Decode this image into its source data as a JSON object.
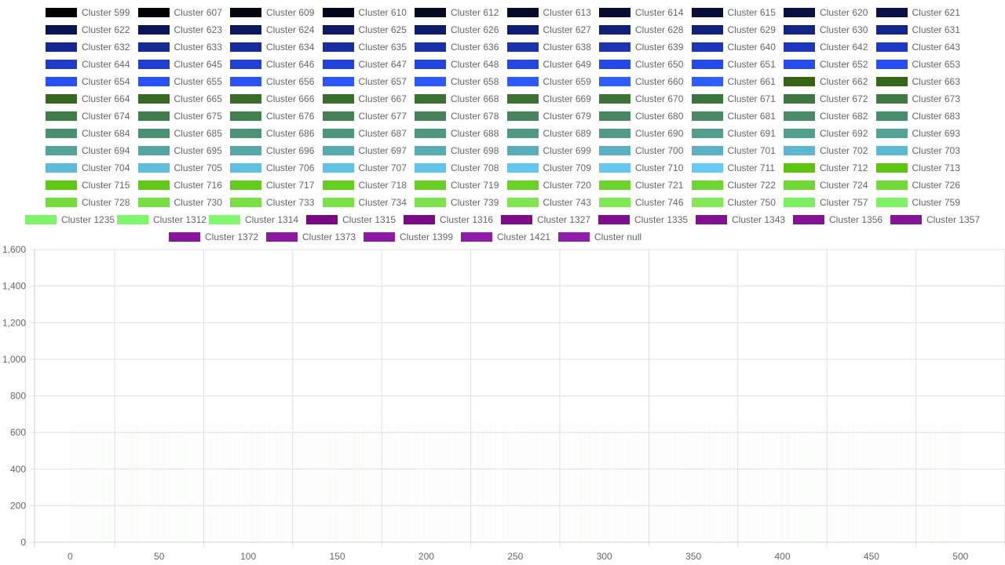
{
  "chart_data": {
    "type": "bar",
    "title": "",
    "xlabel": "",
    "ylabel": "",
    "x_range": [
      -20,
      525
    ],
    "x_ticks": [
      0,
      50,
      100,
      150,
      200,
      250,
      300,
      350,
      400,
      450,
      500
    ],
    "x_tick_labels": [
      "0",
      "50",
      "100",
      "150",
      "200",
      "250",
      "300",
      "350",
      "400",
      "450",
      "500"
    ],
    "ylim": [
      0,
      1600
    ],
    "y_ticks": [
      0,
      200,
      400,
      600,
      800,
      1000,
      1200,
      1400,
      1600
    ],
    "y_tick_labels": [
      "0",
      "200",
      "400",
      "600",
      "800",
      "1,000",
      "1,200",
      "1,400",
      "1,600"
    ],
    "grid": true,
    "legend_position": "top",
    "bar_x_range": [
      0,
      500
    ],
    "bar_value_approx": 650,
    "series": [
      {
        "name": "Cluster 599",
        "color": "#000000"
      },
      {
        "name": "Cluster 607",
        "color": "#010208"
      },
      {
        "name": "Cluster 609",
        "color": "#020410"
      },
      {
        "name": "Cluster 610",
        "color": "#030618"
      },
      {
        "name": "Cluster 612",
        "color": "#040820"
      },
      {
        "name": "Cluster 613",
        "color": "#050a28"
      },
      {
        "name": "Cluster 614",
        "color": "#060c30"
      },
      {
        "name": "Cluster 615",
        "color": "#070e38"
      },
      {
        "name": "Cluster 620",
        "color": "#081040"
      },
      {
        "name": "Cluster 621",
        "color": "#091248"
      },
      {
        "name": "Cluster 622",
        "color": "#0a1450"
      },
      {
        "name": "Cluster 623",
        "color": "#0b1658"
      },
      {
        "name": "Cluster 624",
        "color": "#0c1860"
      },
      {
        "name": "Cluster 625",
        "color": "#0d1a66"
      },
      {
        "name": "Cluster 626",
        "color": "#0e1c6c"
      },
      {
        "name": "Cluster 627",
        "color": "#0f1e72"
      },
      {
        "name": "Cluster 628",
        "color": "#102078"
      },
      {
        "name": "Cluster 629",
        "color": "#11227e"
      },
      {
        "name": "Cluster 630",
        "color": "#122484"
      },
      {
        "name": "Cluster 631",
        "color": "#13268a"
      },
      {
        "name": "Cluster 632",
        "color": "#142890"
      },
      {
        "name": "Cluster 633",
        "color": "#152a96"
      },
      {
        "name": "Cluster 634",
        "color": "#162c9c"
      },
      {
        "name": "Cluster 635",
        "color": "#172ea2"
      },
      {
        "name": "Cluster 636",
        "color": "#1830a8"
      },
      {
        "name": "Cluster 638",
        "color": "#1932ae"
      },
      {
        "name": "Cluster 639",
        "color": "#1a34b4"
      },
      {
        "name": "Cluster 640",
        "color": "#1b36ba"
      },
      {
        "name": "Cluster 642",
        "color": "#1c38c0"
      },
      {
        "name": "Cluster 643",
        "color": "#1d3ac6"
      },
      {
        "name": "Cluster 644",
        "color": "#1e3ccc"
      },
      {
        "name": "Cluster 645",
        "color": "#1f3ed2"
      },
      {
        "name": "Cluster 646",
        "color": "#2040d8"
      },
      {
        "name": "Cluster 647",
        "color": "#2142dc"
      },
      {
        "name": "Cluster 648",
        "color": "#2244e0"
      },
      {
        "name": "Cluster 649",
        "color": "#2346e4"
      },
      {
        "name": "Cluster 650",
        "color": "#2448e8"
      },
      {
        "name": "Cluster 651",
        "color": "#254aec"
      },
      {
        "name": "Cluster 652",
        "color": "#264cf0"
      },
      {
        "name": "Cluster 653",
        "color": "#274ef2"
      },
      {
        "name": "Cluster 654",
        "color": "#2850f4"
      },
      {
        "name": "Cluster 655",
        "color": "#2952f6"
      },
      {
        "name": "Cluster 656",
        "color": "#2a54f8"
      },
      {
        "name": "Cluster 657",
        "color": "#2b56fa"
      },
      {
        "name": "Cluster 658",
        "color": "#2c58fc"
      },
      {
        "name": "Cluster 659",
        "color": "#2d5afd"
      },
      {
        "name": "Cluster 660",
        "color": "#2e5cfe"
      },
      {
        "name": "Cluster 661",
        "color": "#2f5eff"
      },
      {
        "name": "Cluster 662",
        "color": "#346414"
      },
      {
        "name": "Cluster 663",
        "color": "#35661a"
      },
      {
        "name": "Cluster 664",
        "color": "#366820"
      },
      {
        "name": "Cluster 665",
        "color": "#376a24"
      },
      {
        "name": "Cluster 666",
        "color": "#386c28"
      },
      {
        "name": "Cluster 667",
        "color": "#396e2c"
      },
      {
        "name": "Cluster 668",
        "color": "#3a7030"
      },
      {
        "name": "Cluster 669",
        "color": "#3b7234"
      },
      {
        "name": "Cluster 670",
        "color": "#3c7438"
      },
      {
        "name": "Cluster 671",
        "color": "#3d763c"
      },
      {
        "name": "Cluster 672",
        "color": "#3e7840"
      },
      {
        "name": "Cluster 673",
        "color": "#3f7a44"
      },
      {
        "name": "Cluster 674",
        "color": "#407c48"
      },
      {
        "name": "Cluster 675",
        "color": "#417e4c"
      },
      {
        "name": "Cluster 676",
        "color": "#428050"
      },
      {
        "name": "Cluster 677",
        "color": "#438254"
      },
      {
        "name": "Cluster 678",
        "color": "#448458"
      },
      {
        "name": "Cluster 679",
        "color": "#45865c"
      },
      {
        "name": "Cluster 680",
        "color": "#468860"
      },
      {
        "name": "Cluster 681",
        "color": "#478a64"
      },
      {
        "name": "Cluster 682",
        "color": "#488c68"
      },
      {
        "name": "Cluster 683",
        "color": "#498e6c"
      },
      {
        "name": "Cluster 684",
        "color": "#4a9070"
      },
      {
        "name": "Cluster 685",
        "color": "#4b9274"
      },
      {
        "name": "Cluster 686",
        "color": "#4c9478"
      },
      {
        "name": "Cluster 687",
        "color": "#4d967c"
      },
      {
        "name": "Cluster 688",
        "color": "#4e9880"
      },
      {
        "name": "Cluster 689",
        "color": "#4f9a84"
      },
      {
        "name": "Cluster 690",
        "color": "#509c88"
      },
      {
        "name": "Cluster 691",
        "color": "#519e8c"
      },
      {
        "name": "Cluster 692",
        "color": "#52a090"
      },
      {
        "name": "Cluster 693",
        "color": "#53a296"
      },
      {
        "name": "Cluster 694",
        "color": "#54a49c"
      },
      {
        "name": "Cluster 695",
        "color": "#55a6a2"
      },
      {
        "name": "Cluster 696",
        "color": "#56a8a8"
      },
      {
        "name": "Cluster 697",
        "color": "#57aaae"
      },
      {
        "name": "Cluster 698",
        "color": "#58acb4"
      },
      {
        "name": "Cluster 699",
        "color": "#59aeba"
      },
      {
        "name": "Cluster 700",
        "color": "#5ab0c0"
      },
      {
        "name": "Cluster 701",
        "color": "#5bb2c6"
      },
      {
        "name": "Cluster 702",
        "color": "#5cb8d0"
      },
      {
        "name": "Cluster 703",
        "color": "#5dbad4"
      },
      {
        "name": "Cluster 704",
        "color": "#5ebcd8"
      },
      {
        "name": "Cluster 705",
        "color": "#5fbedc"
      },
      {
        "name": "Cluster 706",
        "color": "#60c0e0"
      },
      {
        "name": "Cluster 707",
        "color": "#61c2e4"
      },
      {
        "name": "Cluster 708",
        "color": "#62c4e8"
      },
      {
        "name": "Cluster 709",
        "color": "#63c6ec"
      },
      {
        "name": "Cluster 710",
        "color": "#64c8f0"
      },
      {
        "name": "Cluster 711",
        "color": "#65caf4"
      },
      {
        "name": "Cluster 712",
        "color": "#5cc40a"
      },
      {
        "name": "Cluster 713",
        "color": "#5ec60e"
      },
      {
        "name": "Cluster 715",
        "color": "#60c812"
      },
      {
        "name": "Cluster 716",
        "color": "#62ca16"
      },
      {
        "name": "Cluster 717",
        "color": "#64cc1a"
      },
      {
        "name": "Cluster 718",
        "color": "#66ce1e"
      },
      {
        "name": "Cluster 719",
        "color": "#68d022"
      },
      {
        "name": "Cluster 720",
        "color": "#6ad226"
      },
      {
        "name": "Cluster 721",
        "color": "#6cd42a"
      },
      {
        "name": "Cluster 722",
        "color": "#6ed62e"
      },
      {
        "name": "Cluster 724",
        "color": "#70d832"
      },
      {
        "name": "Cluster 726",
        "color": "#72da36"
      },
      {
        "name": "Cluster 728",
        "color": "#74dc3a"
      },
      {
        "name": "Cluster 730",
        "color": "#76de3e"
      },
      {
        "name": "Cluster 733",
        "color": "#78e042"
      },
      {
        "name": "Cluster 734",
        "color": "#7ae246"
      },
      {
        "name": "Cluster 739",
        "color": "#7ce44a"
      },
      {
        "name": "Cluster 743",
        "color": "#7ee64e"
      },
      {
        "name": "Cluster 746",
        "color": "#80e852"
      },
      {
        "name": "Cluster 750",
        "color": "#82ea56"
      },
      {
        "name": "Cluster 757",
        "color": "#7af060"
      },
      {
        "name": "Cluster 759",
        "color": "#7cf264"
      },
      {
        "name": "Cluster 1235",
        "color": "#7ef468"
      },
      {
        "name": "Cluster 1312",
        "color": "#80f66c"
      },
      {
        "name": "Cluster 1314",
        "color": "#82f870"
      },
      {
        "name": "Cluster 1315",
        "color": "#7a0880"
      },
      {
        "name": "Cluster 1316",
        "color": "#7c0a84"
      },
      {
        "name": "Cluster 1327",
        "color": "#7e0c88"
      },
      {
        "name": "Cluster 1335",
        "color": "#800e8c"
      },
      {
        "name": "Cluster 1343",
        "color": "#821090"
      },
      {
        "name": "Cluster 1356",
        "color": "#841294"
      },
      {
        "name": "Cluster 1357",
        "color": "#861498"
      },
      {
        "name": "Cluster 1372",
        "color": "#88169c"
      },
      {
        "name": "Cluster 1373",
        "color": "#8a18a0"
      },
      {
        "name": "Cluster 1399",
        "color": "#8c1aa4"
      },
      {
        "name": "Cluster 1421",
        "color": "#8e1ca8"
      },
      {
        "name": "Cluster null",
        "color": "#901eac"
      }
    ]
  }
}
